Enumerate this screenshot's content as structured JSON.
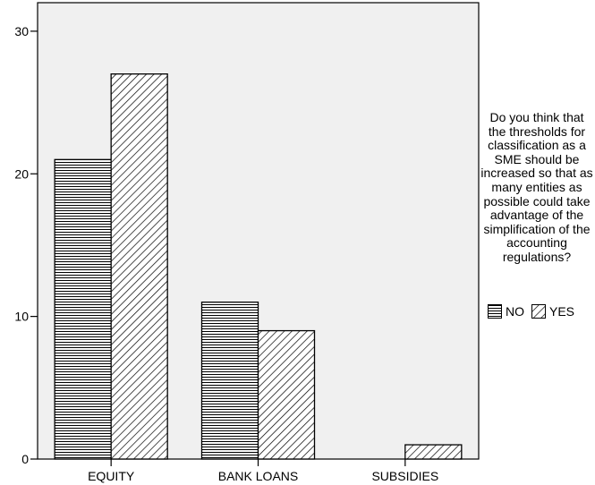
{
  "chart_data": {
    "type": "bar",
    "categories": [
      "EQUITY",
      "BANK LOANS",
      "SUBSIDIES"
    ],
    "series": [
      {
        "name": "NO",
        "values": [
          21,
          11,
          0
        ],
        "pattern": "horizontal-lines"
      },
      {
        "name": "YES",
        "values": [
          27,
          9,
          1
        ],
        "pattern": "diagonal-lines"
      }
    ],
    "ylim": [
      0,
      32
    ],
    "yticks": [
      0,
      10,
      20,
      30
    ],
    "plot_background": "#f0f0f0",
    "bar_color": "#000000",
    "grid": false,
    "legend_title": "Do you think that the thresholds for classification as a SME should be increased so that as many entities as possible could take advantage of the simplification of the accounting regulations?",
    "legend_placement": "right"
  }
}
